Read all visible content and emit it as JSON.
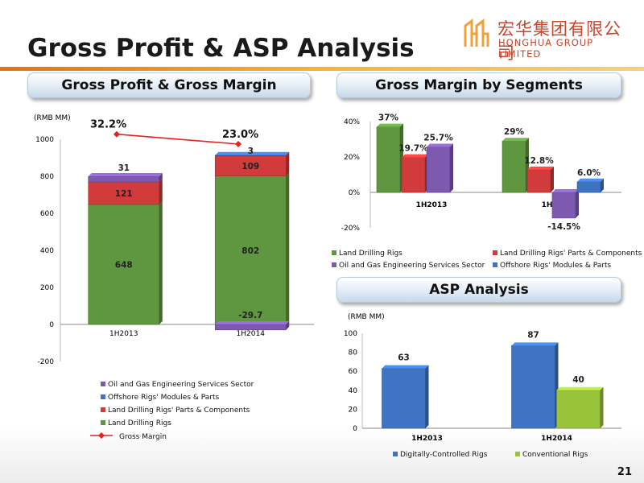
{
  "page": {
    "title": "Gross Profit & ASP Analysis",
    "page_number": "21"
  },
  "logo": {
    "cn": "宏华集团有限公司",
    "en": "HONGHUA GROUP LIMITED"
  },
  "sections": {
    "gross_profit": "Gross Profit  & Gross Margin",
    "segments": "Gross Margin by Segments",
    "asp": "ASP Analysis"
  },
  "chart_data": [
    {
      "id": "gross_profit",
      "type": "bar",
      "stacked": true,
      "unit_label": "(RMB MM)",
      "categories": [
        "1H2013",
        "1H2014"
      ],
      "ylim": [
        -200,
        1000
      ],
      "yticks": [
        "-200",
        "0",
        "200",
        "400",
        "600",
        "800",
        "1000"
      ],
      "series": [
        {
          "name": "Land Drilling Rigs",
          "values": [
            648,
            802
          ],
          "labels": [
            "648",
            "802"
          ],
          "color": "#5f9640"
        },
        {
          "name": "Land Drilling Rigs' Parts & Components",
          "values": [
            121,
            109
          ],
          "labels": [
            "121",
            "109"
          ],
          "color": "#d13b3b"
        },
        {
          "name": "Offshore Rigs' Modules & Parts",
          "values": [
            0,
            3
          ],
          "labels": [
            "",
            "3"
          ],
          "color": "#3f74c2"
        },
        {
          "name": "Oil and Gas Engineering Services Sector",
          "values": [
            31,
            -29.7
          ],
          "labels": [
            "31",
            "-29.7"
          ],
          "color": "#7d5ab0"
        }
      ],
      "gross_margin": {
        "name": "Gross Margin",
        "values": [
          32.2,
          23.0
        ],
        "labels": [
          "32.2%",
          "23.0%"
        ],
        "color": "#e32222"
      },
      "legend_order": [
        "Oil and Gas Engineering Services Sector",
        "Offshore Rigs' Modules & Parts",
        "Land Drilling Rigs' Parts & Components",
        "Land Drilling Rigs"
      ],
      "legend_position": "bottom"
    },
    {
      "id": "segments",
      "type": "bar",
      "categories": [
        "1H2013",
        "1H2014"
      ],
      "ylim": [
        -20,
        40
      ],
      "yticks": [
        "-20%",
        "0%",
        "20%",
        "40%"
      ],
      "series": [
        {
          "name": "Land Drilling Rigs",
          "values": [
            37,
            29
          ],
          "labels": [
            "37%",
            "29%"
          ],
          "color": "#5f9640"
        },
        {
          "name": "Land Drilling Rigs' Parts & Components",
          "values": [
            19.7,
            12.8
          ],
          "labels": [
            "19.7%",
            "12.8%"
          ],
          "color": "#d13b3b"
        },
        {
          "name": "Oil and Gas Engineering Services Sector",
          "values": [
            25.7,
            -14.5
          ],
          "labels": [
            "25.7%",
            "-14.5%"
          ],
          "color": "#7d5ab0"
        },
        {
          "name": "Offshore Rigs' Modules & Parts",
          "values": [
            0,
            6.0
          ],
          "labels": [
            "",
            "6.0%"
          ],
          "color": "#3f74c2"
        }
      ],
      "legend_position": "bottom"
    },
    {
      "id": "asp",
      "type": "bar",
      "unit_label": "(RMB MM)",
      "categories": [
        "1H2013",
        "1H2014"
      ],
      "ylim": [
        0,
        100
      ],
      "yticks": [
        "0",
        "20",
        "40",
        "60",
        "80",
        "100"
      ],
      "series": [
        {
          "name": "Digitally-Controlled Rigs",
          "values": [
            63,
            87
          ],
          "labels": [
            "63",
            "87"
          ],
          "color": "#3f74c2"
        },
        {
          "name": "Conventional Rigs",
          "values": [
            0,
            40
          ],
          "labels": [
            "",
            "40"
          ],
          "color": "#9ac33c"
        }
      ],
      "legend_position": "bottom"
    }
  ]
}
